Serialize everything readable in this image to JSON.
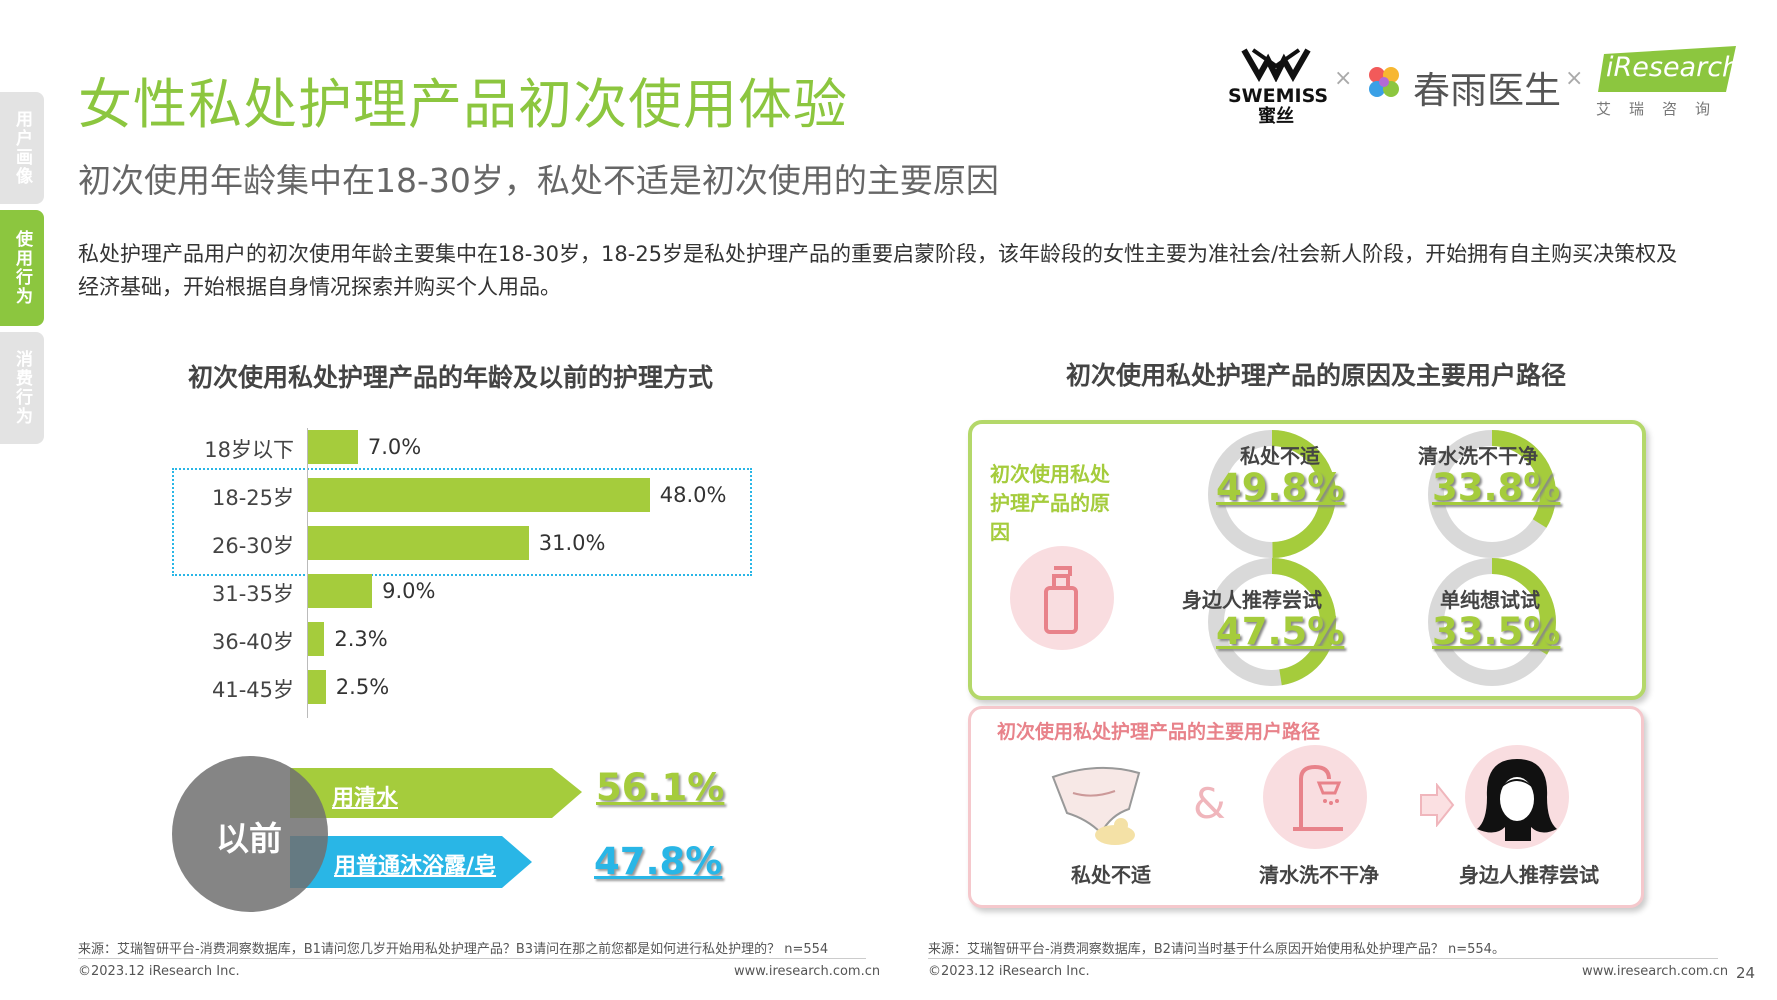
{
  "nav": {
    "tab1": "用户画像",
    "tab2": "使用行为",
    "tab3": "消费行为"
  },
  "header": {
    "title": "女性私处护理产品初次使用体验",
    "subtitle": "初次使用年龄集中在18-30岁，私处不适是初次使用的主要原因",
    "description": "私处护理产品用户的初次使用年龄主要集中在18-30岁，18-25岁是私处护理产品的重要启蒙阶段，该年龄段的女性主要为准社会/社会新人阶段，开始拥有自主购买决策权及经济基础，开始根据自身情况探索并购买个人用品。"
  },
  "logos": {
    "swemiss": "SWEMISS",
    "swemiss_cn": "蜜丝",
    "times": "×",
    "chunyu": "春雨医生",
    "iresearch": "iResearch",
    "iresearch_cn": "艾瑞咨询"
  },
  "left": {
    "title": "初次使用私处护理产品的年龄及以前的护理方式",
    "source": "来源：艾瑞智研平台-消费洞察数据库，B1请问您几岁开始用私处护理产品？B3请问在那之前您都是如何进行私处护理的？ n=554",
    "copyright": "©2023.12 iResearch Inc.",
    "url": "www.iresearch.com.cn"
  },
  "right": {
    "title": "初次使用私处护理产品的原因及主要用户路径",
    "reason_label": "初次使用私处护理产品的原因",
    "path_title": "初次使用私处护理产品的主要用户路径",
    "path_steps": [
      "私处不适",
      "清水洗不干净",
      "身边人推荐尝试"
    ],
    "path_and": "&",
    "source": "来源：艾瑞智研平台-消费洞察数据库，B2请问当时基于什么原因开始使用私处护理产品？ n=554。",
    "copyright": "©2023.12 iResearch Inc.",
    "url": "www.iresearch.com.cn"
  },
  "page_number": "24",
  "colors": {
    "accent": "#8cc63f",
    "bar": "#a5cc3c",
    "blue": "#29b6e6",
    "pink": "#e8828a",
    "grey": "#d9d9d9"
  },
  "chart_data": [
    {
      "type": "bar",
      "orientation": "horizontal",
      "categories": [
        "18岁以下",
        "18-25岁",
        "26-30岁",
        "31-35岁",
        "36-40岁",
        "41-45岁"
      ],
      "values": [
        7.0,
        48.0,
        31.0,
        9.0,
        2.3,
        2.5
      ],
      "labels": [
        "7.0%",
        "48.0%",
        "31.0%",
        "9.0%",
        "2.3%",
        "2.5%"
      ],
      "highlight": [
        "18-25岁",
        "26-30岁"
      ]
    },
    {
      "type": "bar",
      "group": "以前",
      "categories": [
        "用清水",
        "用普通沐浴露/皂"
      ],
      "values": [
        56.1,
        47.8
      ],
      "labels": [
        "56.1%",
        "47.8%"
      ]
    },
    {
      "type": "pie",
      "categories": [
        "私处不适",
        "清水洗不干净",
        "身边人推荐尝试",
        "单纯想试试"
      ],
      "values": [
        49.8,
        33.8,
        47.5,
        33.5
      ],
      "labels": [
        "49.8%",
        "33.8%",
        "47.5%",
        "33.5%"
      ]
    }
  ]
}
